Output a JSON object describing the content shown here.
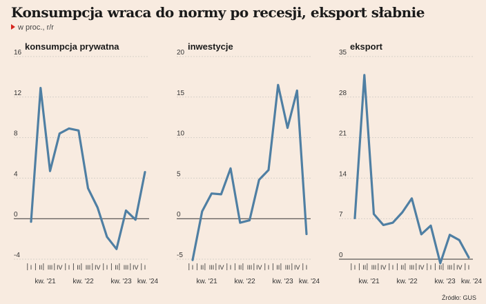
{
  "title": "Konsumpcja wraca do normy po recesji, eksport słabnie",
  "subtitle": "w proc., r/r",
  "source": "Źródło: GUS",
  "colors": {
    "line": "#4f7fa3",
    "grid": "#d6d0c8",
    "zero": "#333333",
    "accent": "#d7261e"
  },
  "chart_data": [
    {
      "type": "line",
      "title": "konsumpcja prywatna",
      "ylim": [
        -4,
        16
      ],
      "yticks": [
        "-4",
        "0",
        "4",
        "8",
        "12",
        "16"
      ],
      "yticks_values": [
        -4,
        0,
        4,
        8,
        12,
        16
      ],
      "quarters": [
        "I",
        "II",
        "III",
        "IV",
        "I",
        "II",
        "III",
        "IV",
        "I",
        "II",
        "III",
        "IV",
        "I"
      ],
      "year_labels": [
        "kw. '21",
        "kw. '22",
        "kw. '23",
        "kw. '24"
      ],
      "values": [
        -0.3,
        12.9,
        4.7,
        8.4,
        8.9,
        8.7,
        3.0,
        1.1,
        -1.8,
        -3.0,
        0.8,
        -0.1,
        4.6
      ]
    },
    {
      "type": "line",
      "title": "inwestycje",
      "ylim": [
        -5,
        20
      ],
      "yticks": [
        "-5",
        "0",
        "5",
        "10",
        "15",
        "20"
      ],
      "yticks_values": [
        -5,
        0,
        5,
        10,
        15,
        20
      ],
      "quarters": [
        "I",
        "II",
        "III",
        "IV",
        "I",
        "II",
        "III",
        "IV",
        "I",
        "II",
        "III",
        "IV",
        "I"
      ],
      "year_labels": [
        "kw. '21",
        "kw. '22",
        "kw. '23",
        "kw. '24"
      ],
      "values": [
        -5.1,
        0.9,
        3.1,
        3.0,
        6.2,
        -0.5,
        -0.2,
        4.8,
        6.0,
        16.5,
        11.2,
        15.8,
        -1.9
      ]
    },
    {
      "type": "line",
      "title": "eksport",
      "ylim": [
        0,
        35
      ],
      "yticks": [
        "0",
        "7",
        "14",
        "21",
        "28",
        "35"
      ],
      "yticks_values": [
        0,
        7,
        14,
        21,
        28,
        35
      ],
      "quarters": [
        "I",
        "II",
        "III",
        "IV",
        "I",
        "II",
        "III",
        "IV",
        "I",
        "II",
        "III",
        "IV",
        "I"
      ],
      "year_labels": [
        "kw. '21",
        "kw. '22",
        "kw. '23",
        "kw. '24"
      ],
      "values": [
        7.1,
        31.8,
        7.8,
        5.9,
        6.3,
        8.1,
        10.5,
        4.3,
        5.8,
        -0.7,
        4.2,
        3.3,
        0.3
      ]
    }
  ]
}
